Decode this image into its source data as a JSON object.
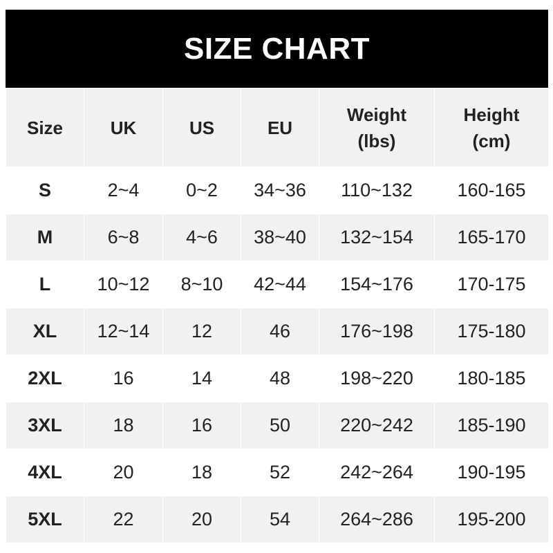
{
  "title": "SIZE CHART",
  "headers": [
    "Size",
    "UK",
    "US",
    "EU",
    "Weight\n(lbs)",
    "Height\n(cm)"
  ],
  "header_lines": [
    [
      "Size"
    ],
    [
      "UK"
    ],
    [
      "US"
    ],
    [
      "EU"
    ],
    [
      "Weight",
      "(lbs)"
    ],
    [
      "Height",
      "(cm)"
    ]
  ],
  "rows": [
    [
      "S",
      "2~4",
      "0~2",
      "34~36",
      "110~132",
      "160-165"
    ],
    [
      "M",
      "6~8",
      "4~6",
      "38~40",
      "132~154",
      "165-170"
    ],
    [
      "L",
      "10~12",
      "8~10",
      "42~44",
      "154~176",
      "170-175"
    ],
    [
      "XL",
      "12~14",
      "12",
      "46",
      "176~198",
      "175-180"
    ],
    [
      "2XL",
      "16",
      "14",
      "48",
      "198~220",
      "180-185"
    ],
    [
      "3XL",
      "18",
      "16",
      "50",
      "220~242",
      "185-190"
    ],
    [
      "4XL",
      "20",
      "18",
      "52",
      "242~264",
      "190-195"
    ],
    [
      "5XL",
      "22",
      "20",
      "54",
      "264~286",
      "195-200"
    ]
  ],
  "colors": {
    "title_bg": "#000000",
    "title_text": "#ffffff",
    "shaded_row": "#f1f1f1"
  }
}
